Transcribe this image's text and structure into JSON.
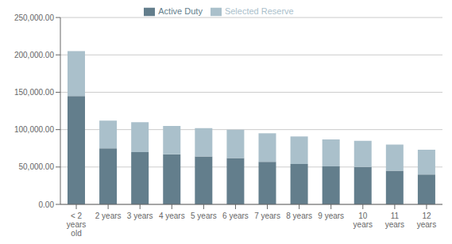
{
  "chart_data": {
    "type": "bar",
    "stacked": true,
    "grid": true,
    "legend": "top",
    "categories": [
      "< 2\nyears\nold",
      "2 years",
      "3 years",
      "4 years",
      "5 years",
      "6 years",
      "7 years",
      "8 years",
      "9 years",
      "10\nyears",
      "11\nyears",
      "12\nyears"
    ],
    "series": [
      {
        "name": "Active Duty",
        "color": "#637e8c",
        "values": [
          145000,
          75000,
          70000,
          67000,
          64000,
          62000,
          57000,
          54000,
          51000,
          50000,
          45000,
          40000
        ]
      },
      {
        "name": "Selected Reserve",
        "color": "#aac0cb",
        "values": [
          60000,
          37000,
          40000,
          38000,
          38000,
          38000,
          38000,
          37000,
          36000,
          35000,
          35000,
          33000
        ]
      }
    ],
    "ylim": [
      0,
      250000
    ],
    "yticks": [
      {
        "value": 0,
        "label": "0.00"
      },
      {
        "value": 50000,
        "label": "50,000.00"
      },
      {
        "value": 100000,
        "label": "100,000.00"
      },
      {
        "value": 150000,
        "label": "150,000.00"
      },
      {
        "value": 200000,
        "label": "200,000.00"
      },
      {
        "value": 250000,
        "label": "250,000.00"
      }
    ]
  }
}
